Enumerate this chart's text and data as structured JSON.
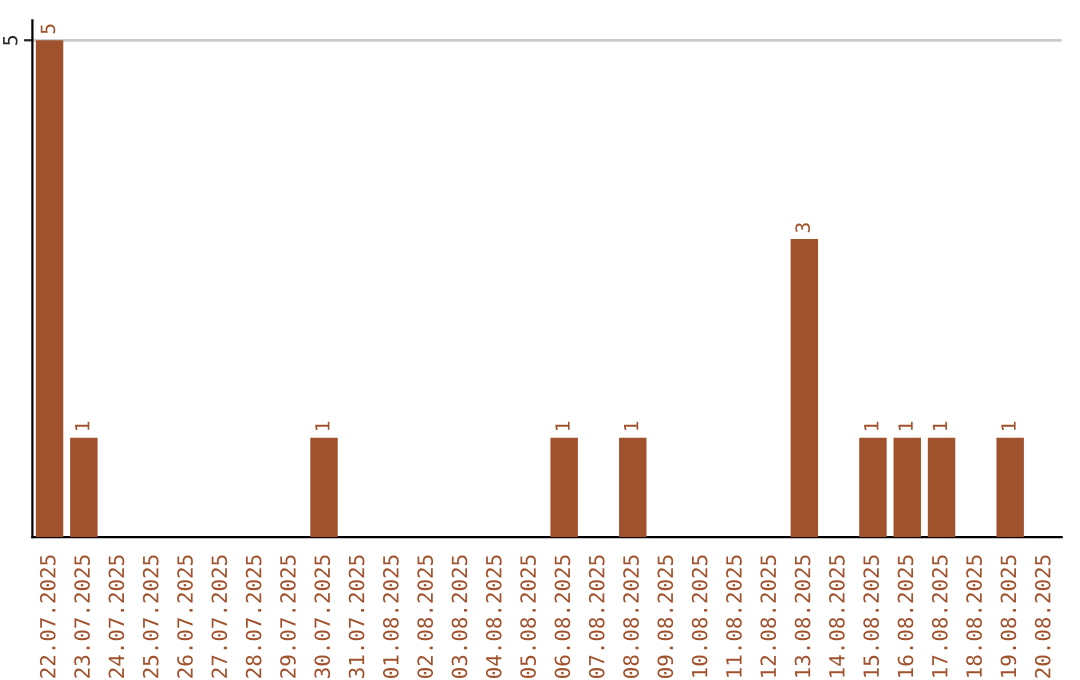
{
  "chart_data": {
    "type": "bar",
    "categories": [
      "22.07.2025",
      "23.07.2025",
      "24.07.2025",
      "25.07.2025",
      "26.07.2025",
      "27.07.2025",
      "28.07.2025",
      "29.07.2025",
      "30.07.2025",
      "31.07.2025",
      "01.08.2025",
      "02.08.2025",
      "03.08.2025",
      "04.08.2025",
      "05.08.2025",
      "06.08.2025",
      "07.08.2025",
      "08.08.2025",
      "09.08.2025",
      "10.08.2025",
      "11.08.2025",
      "12.08.2025",
      "13.08.2025",
      "14.08.2025",
      "15.08.2025",
      "16.08.2025",
      "17.08.2025",
      "18.08.2025",
      "19.08.2025",
      "20.08.2025"
    ],
    "values": [
      5,
      1,
      0,
      0,
      0,
      0,
      0,
      0,
      1,
      0,
      0,
      0,
      0,
      0,
      0,
      1,
      0,
      1,
      0,
      0,
      0,
      0,
      3,
      0,
      1,
      1,
      1,
      0,
      1,
      0
    ],
    "value_labels": [
      "5",
      "1",
      null,
      null,
      null,
      null,
      null,
      null,
      "1",
      null,
      null,
      null,
      null,
      null,
      null,
      "1",
      null,
      "1",
      null,
      null,
      null,
      null,
      "3",
      null,
      "1",
      "1",
      "1",
      null,
      "1",
      null
    ],
    "color": "#a0522d",
    "ylim": [
      0,
      5.2
    ],
    "yticks": [
      5
    ],
    "grid": "y"
  }
}
